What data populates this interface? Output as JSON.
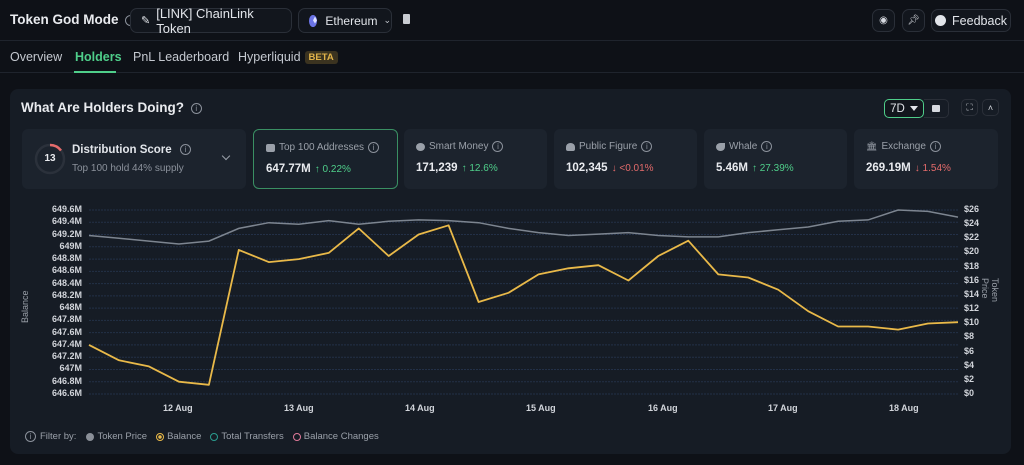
{
  "header": {
    "title": "Token God Mode",
    "token_label": "[LINK] ChainLink Token",
    "chain_label": "Ethereum",
    "feedback_label": "Feedback"
  },
  "tabs": [
    {
      "label": "Overview",
      "active": false
    },
    {
      "label": "Holders",
      "active": true
    },
    {
      "label": "PnL Leaderboard",
      "active": false
    },
    {
      "label": "Hyperliquid",
      "active": false,
      "badge": "BETA"
    }
  ],
  "panel": {
    "title": "What Are Holders Doing?",
    "range": "7D"
  },
  "distribution": {
    "score": "13",
    "title": "Distribution Score",
    "subtitle": "Top 100 hold 44% supply"
  },
  "cards": [
    {
      "label": "Top 100 Addresses",
      "value": "647.77M",
      "change": "↑ 0.22%",
      "direction": "up",
      "selected": true
    },
    {
      "label": "Smart Money",
      "value": "171,239",
      "change": "↑ 12.6%",
      "direction": "up",
      "selected": false
    },
    {
      "label": "Public Figure",
      "value": "102,345",
      "change": "↓ <0.01%",
      "direction": "down",
      "selected": false
    },
    {
      "label": "Whale",
      "value": "5.46M",
      "change": "↑ 27.39%",
      "direction": "up",
      "selected": false
    },
    {
      "label": "Exchange",
      "value": "269.19M",
      "change": "↓ 1.54%",
      "direction": "down",
      "selected": false
    }
  ],
  "legend": {
    "filter_label": "Filter by:",
    "items": [
      {
        "label": "Token Price",
        "color": "#8a8f98"
      },
      {
        "label": "Balance",
        "color": "#e9b949"
      },
      {
        "label": "Total Transfers",
        "color": "#2a9d8f"
      },
      {
        "label": "Balance Changes",
        "color": "#e07a9a"
      }
    ]
  },
  "colors": {
    "accent": "#4fce8a",
    "balance_line": "#e9b949",
    "price_line": "#7d8590",
    "up": "#4fce8a",
    "down": "#e46b6b",
    "panel_bg": "#161c25"
  },
  "chart_data": {
    "type": "line",
    "title": "What Are Holders Doing?",
    "xlabel": "",
    "ylabel": "Balance",
    "ylabel_right": "Token Price",
    "x_ticks": [
      "12 Aug",
      "13 Aug",
      "14 Aug",
      "15 Aug",
      "16 Aug",
      "17 Aug",
      "18 Aug"
    ],
    "y_ticks_left": [
      "646.6M",
      "646.8M",
      "647M",
      "647.2M",
      "647.4M",
      "647.6M",
      "647.8M",
      "648M",
      "648.2M",
      "648.4M",
      "648.6M",
      "648.8M",
      "649M",
      "649.2M",
      "649.4M",
      "649.6M"
    ],
    "y_ticks_right": [
      "$0",
      "$2",
      "$4",
      "$6",
      "$8",
      "$10",
      "$12",
      "$14",
      "$16",
      "$18",
      "$20",
      "$22",
      "$24",
      "$26"
    ],
    "ylim_left": [
      646.6,
      649.6
    ],
    "ylim_right": [
      0,
      26
    ],
    "grid": true,
    "legend_position": "bottom",
    "x": [
      "11 Aug 06:00",
      "11 Aug 12:00",
      "11 Aug 18:00",
      "12 Aug 00:00",
      "12 Aug 06:00",
      "12 Aug 12:00",
      "12 Aug 18:00",
      "13 Aug 00:00",
      "13 Aug 06:00",
      "13 Aug 12:00",
      "13 Aug 18:00",
      "14 Aug 00:00",
      "14 Aug 06:00",
      "14 Aug 12:00",
      "14 Aug 18:00",
      "15 Aug 00:00",
      "15 Aug 06:00",
      "15 Aug 12:00",
      "15 Aug 18:00",
      "16 Aug 00:00",
      "16 Aug 06:00",
      "16 Aug 12:00",
      "16 Aug 18:00",
      "17 Aug 00:00",
      "17 Aug 06:00",
      "17 Aug 12:00",
      "17 Aug 18:00",
      "18 Aug 00:00",
      "18 Aug 06:00",
      "18 Aug 12:00"
    ],
    "series": [
      {
        "name": "Balance",
        "axis": "left",
        "color": "#e9b949",
        "values": [
          647.4,
          647.15,
          647.05,
          646.8,
          646.75,
          648.95,
          648.75,
          648.8,
          648.9,
          649.3,
          648.85,
          649.2,
          649.35,
          648.1,
          648.25,
          648.55,
          648.65,
          648.7,
          648.45,
          648.85,
          649.1,
          648.55,
          648.5,
          648.3,
          647.95,
          647.7,
          647.7,
          647.65,
          647.75,
          647.77
        ]
      },
      {
        "name": "Token Price",
        "axis": "right",
        "color": "#7d8590",
        "values": [
          22.4,
          22.0,
          21.6,
          21.2,
          21.6,
          23.4,
          24.2,
          24.0,
          24.5,
          24.0,
          24.4,
          24.6,
          24.5,
          24.2,
          23.4,
          22.8,
          22.4,
          22.6,
          22.8,
          22.4,
          22.2,
          22.2,
          22.8,
          23.2,
          23.6,
          24.4,
          24.6,
          26.0,
          25.8,
          25.0
        ]
      }
    ]
  }
}
